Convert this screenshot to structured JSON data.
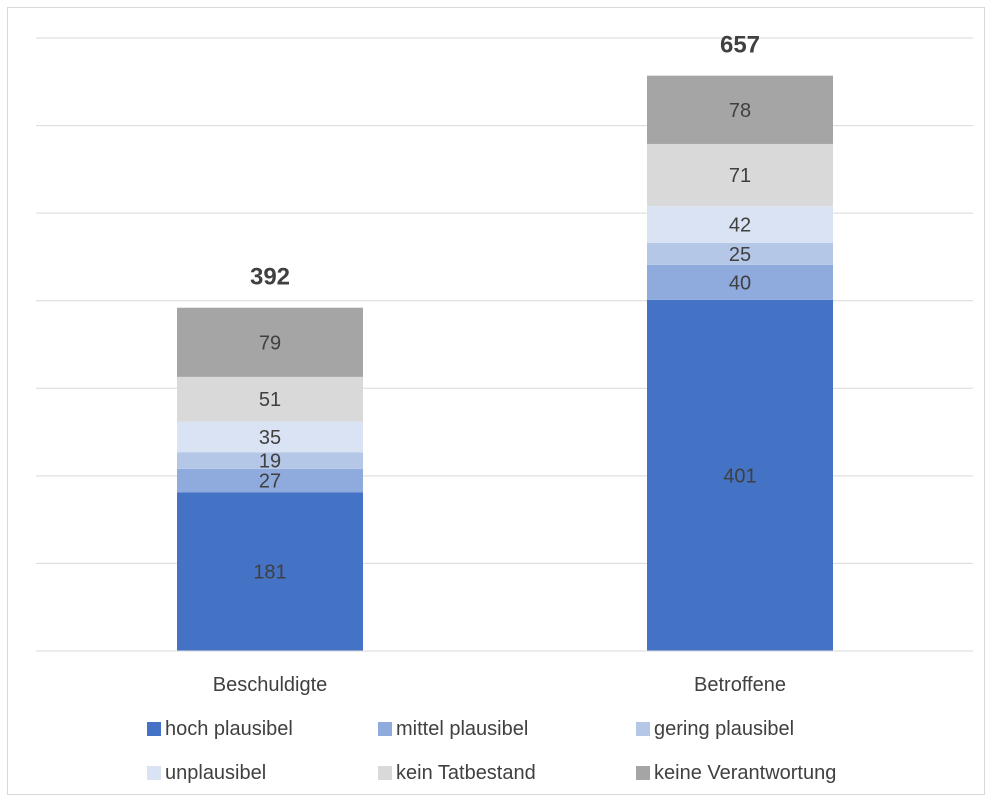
{
  "chart_data": {
    "type": "bar",
    "stacked": true,
    "categories": [
      "Beschuldigte",
      "Betroffene"
    ],
    "totals": [
      392,
      657
    ],
    "ylim": [
      0,
      700
    ],
    "grid": true,
    "legend_position": "bottom",
    "series": [
      {
        "name": "hoch plausibel",
        "values": [
          181,
          401
        ],
        "color": "#4472c4",
        "label_color": "#404040"
      },
      {
        "name": "mittel plausibel",
        "values": [
          27,
          40
        ],
        "color": "#8faadc",
        "label_color": "#404040"
      },
      {
        "name": "gering plausibel",
        "values": [
          19,
          25
        ],
        "color": "#b4c7e7",
        "label_color": "#404040"
      },
      {
        "name": "unplausibel",
        "values": [
          35,
          42
        ],
        "color": "#dae3f3",
        "label_color": "#404040"
      },
      {
        "name": "kein Tatbestand",
        "values": [
          51,
          71
        ],
        "color": "#d9d9d9",
        "label_color": "#404040"
      },
      {
        "name": "keine Verantwortung",
        "values": [
          79,
          78
        ],
        "color": "#a5a5a5",
        "label_color": "#404040"
      }
    ]
  }
}
